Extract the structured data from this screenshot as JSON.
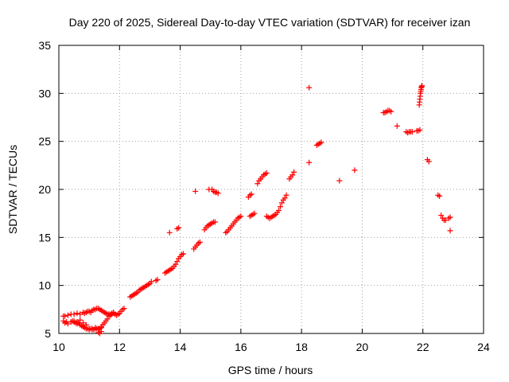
{
  "chart_data": {
    "type": "scatter",
    "title": "Day 220 of 2025, Sidereal Day-to-day VTEC variation (SDTVAR) for receiver izan",
    "xlabel": "GPS time / hours",
    "ylabel": "SDTVAR / TECUs",
    "xlim": [
      10,
      24
    ],
    "ylim": [
      5,
      35
    ],
    "xticks": [
      10,
      12,
      14,
      16,
      18,
      20,
      22,
      24
    ],
    "yticks": [
      5,
      10,
      15,
      20,
      25,
      30,
      35
    ],
    "xtick_labels": [
      "10",
      "12",
      "14",
      "16",
      "18",
      "20",
      "22",
      "24"
    ],
    "ytick_labels": [
      "5",
      "10",
      "15",
      "20",
      "25",
      "30",
      "35"
    ],
    "grid": true,
    "marker": "plus",
    "color": "#ff0000",
    "series": [
      {
        "name": "SDTVAR",
        "x": [
          10.15,
          10.2,
          10.25,
          10.3,
          10.4,
          10.45,
          10.5,
          10.55,
          10.6,
          10.65,
          10.7,
          10.75,
          10.8,
          10.85,
          10.9,
          10.95,
          11.0,
          11.05,
          11.1,
          11.15,
          11.2,
          11.25,
          11.3,
          11.35,
          11.4,
          11.45,
          11.5,
          11.55,
          11.6,
          11.65,
          11.7,
          11.75,
          11.8,
          11.85,
          11.9,
          11.95,
          12.0,
          12.05,
          12.1,
          12.15,
          10.2,
          10.3,
          10.4,
          10.5,
          10.6,
          10.7,
          10.8,
          10.85,
          10.9,
          10.95,
          11.0,
          11.05,
          11.1,
          11.15,
          11.2,
          11.25,
          11.3,
          11.35,
          11.4,
          11.45,
          11.5,
          11.55,
          11.6,
          11.65,
          11.7,
          11.75,
          11.8,
          10.15,
          10.5,
          10.6,
          10.7,
          10.8,
          10.9,
          11.0,
          11.1,
          11.2,
          11.3,
          11.4,
          11.3,
          11.35,
          11.4,
          12.35,
          12.4,
          12.45,
          12.5,
          12.55,
          12.6,
          12.65,
          12.7,
          12.75,
          12.8,
          12.85,
          12.9,
          12.95,
          13.0,
          13.05,
          13.2,
          13.25,
          13.5,
          13.55,
          13.6,
          13.65,
          13.7,
          13.75,
          13.8,
          13.85,
          13.9,
          13.95,
          14.0,
          14.05,
          14.1,
          13.65,
          13.9,
          13.95,
          14.45,
          14.5,
          14.55,
          14.6,
          14.65,
          14.8,
          14.85,
          14.9,
          14.95,
          15.0,
          15.05,
          15.1,
          15.15,
          14.5,
          14.95,
          15.05,
          15.1,
          15.15,
          15.2,
          15.25,
          15.5,
          15.55,
          15.6,
          15.65,
          15.7,
          15.75,
          15.8,
          15.85,
          15.9,
          15.95,
          16.0,
          16.3,
          16.35,
          16.4,
          16.45,
          16.25,
          16.3,
          16.35,
          16.55,
          16.6,
          16.65,
          16.7,
          16.75,
          16.8,
          16.85,
          16.85,
          16.9,
          16.95,
          17.0,
          17.05,
          17.1,
          17.15,
          17.2,
          17.25,
          17.3,
          17.35,
          17.4,
          17.45,
          17.5,
          17.6,
          17.65,
          17.7,
          17.75,
          18.25,
          18.25,
          18.5,
          18.55,
          18.6,
          18.65,
          19.25,
          19.75,
          20.7,
          20.75,
          20.8,
          20.85,
          20.9,
          20.95,
          21.15,
          21.45,
          21.5,
          21.55,
          21.6,
          21.65,
          21.8,
          21.85,
          21.9,
          21.88,
          21.89,
          21.9,
          21.91,
          21.92,
          21.93,
          21.94,
          21.95,
          21.96,
          21.97,
          22.15,
          22.2,
          22.5,
          22.55,
          22.6,
          22.65,
          22.7,
          22.75,
          22.85,
          22.9,
          22.9
        ],
        "y": [
          6.3,
          6.1,
          6.2,
          6.0,
          6.2,
          6.3,
          6.2,
          6.1,
          6.0,
          6.1,
          5.9,
          5.8,
          5.7,
          5.6,
          5.5,
          5.5,
          5.4,
          5.5,
          5.5,
          5.4,
          5.6,
          5.5,
          5.4,
          5.5,
          5.7,
          5.9,
          6.1,
          6.3,
          6.5,
          6.8,
          7.0,
          7.1,
          7.2,
          7.0,
          6.9,
          7.0,
          7.1,
          7.3,
          7.5,
          7.6,
          6.8,
          6.9,
          7.0,
          7.0,
          7.1,
          7.0,
          7.2,
          7.1,
          7.2,
          7.3,
          7.3,
          7.2,
          7.4,
          7.5,
          7.5,
          7.6,
          7.6,
          7.5,
          7.4,
          7.3,
          7.2,
          7.1,
          7.0,
          7.0,
          6.9,
          7.0,
          7.1,
          6.8,
          6.3,
          6.2,
          6.4,
          6.1,
          5.9,
          5.5,
          5.4,
          5.5,
          5.5,
          5.6,
          5.1,
          5.0,
          5.2,
          8.8,
          8.9,
          9.0,
          9.1,
          9.2,
          9.3,
          9.5,
          9.6,
          9.7,
          9.8,
          9.9,
          10.0,
          10.1,
          10.2,
          10.4,
          10.5,
          10.6,
          11.3,
          11.4,
          11.5,
          11.6,
          11.7,
          11.8,
          12.0,
          12.2,
          12.5,
          12.8,
          13.0,
          13.2,
          13.3,
          15.5,
          15.9,
          16.0,
          13.8,
          14.0,
          14.2,
          14.4,
          14.5,
          15.8,
          16.0,
          16.2,
          16.3,
          16.4,
          16.5,
          16.6,
          16.6,
          19.8,
          20.0,
          20.0,
          19.8,
          19.7,
          19.7,
          19.6,
          15.5,
          15.6,
          15.8,
          16.0,
          16.2,
          16.4,
          16.6,
          16.8,
          17.0,
          17.1,
          17.2,
          17.2,
          17.3,
          17.4,
          17.5,
          19.2,
          19.4,
          19.5,
          20.6,
          20.9,
          21.1,
          21.3,
          21.5,
          21.6,
          21.7,
          17.2,
          17.1,
          17.0,
          17.1,
          17.2,
          17.3,
          17.4,
          17.6,
          17.8,
          18.2,
          18.6,
          18.9,
          19.1,
          19.4,
          21.1,
          21.3,
          21.5,
          21.8,
          30.6,
          22.8,
          24.6,
          24.7,
          24.8,
          24.9,
          20.9,
          22.0,
          28.0,
          28.0,
          28.1,
          28.2,
          28.2,
          28.1,
          26.6,
          26.0,
          25.9,
          26.0,
          26.0,
          26.0,
          26.1,
          26.1,
          26.2,
          28.8,
          29.1,
          29.4,
          29.7,
          30.0,
          30.2,
          30.4,
          30.6,
          30.7,
          30.8,
          23.1,
          22.9,
          19.4,
          19.3,
          17.3,
          17.0,
          16.8,
          16.8,
          17.0,
          17.1,
          15.7
        ]
      }
    ]
  }
}
